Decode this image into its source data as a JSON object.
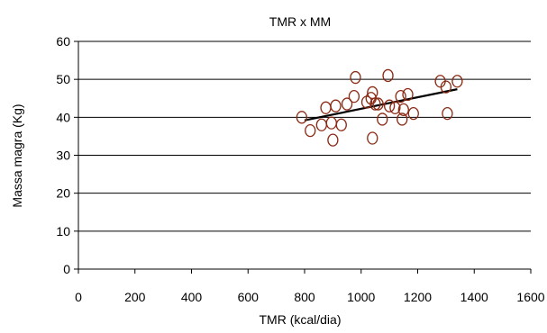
{
  "chart_data": {
    "type": "scatter",
    "title": "TMR x MM",
    "xlabel": "TMR (kcal/dia)",
    "ylabel": "Massa magra (Kg)",
    "xlim": [
      0,
      1600
    ],
    "ylim": [
      0,
      60
    ],
    "xticks": [
      "0",
      "200",
      "400",
      "600",
      "800",
      "1000",
      "1200",
      "1400",
      "1600"
    ],
    "yticks": [
      "0",
      "10",
      "20",
      "30",
      "40",
      "50",
      "60"
    ],
    "grid": "horizontal",
    "legend": "none",
    "colors": {
      "marker": "#8b2a14",
      "trendline": "#000000",
      "grid": "#000000"
    },
    "series": [
      {
        "points": [
          [
            790,
            40.0
          ],
          [
            820,
            36.5
          ],
          [
            860,
            38.0
          ],
          [
            875,
            42.5
          ],
          [
            895,
            38.5
          ],
          [
            900,
            34.0
          ],
          [
            910,
            43.0
          ],
          [
            930,
            38.0
          ],
          [
            950,
            43.5
          ],
          [
            975,
            45.5
          ],
          [
            980,
            50.5
          ],
          [
            1020,
            44.0
          ],
          [
            1035,
            45.0
          ],
          [
            1040,
            46.5
          ],
          [
            1040,
            34.5
          ],
          [
            1050,
            43.5
          ],
          [
            1060,
            43.5
          ],
          [
            1075,
            39.5
          ],
          [
            1095,
            51.0
          ],
          [
            1100,
            43.0
          ],
          [
            1120,
            42.5
          ],
          [
            1140,
            45.5
          ],
          [
            1145,
            39.5
          ],
          [
            1150,
            42.0
          ],
          [
            1165,
            46.0
          ],
          [
            1185,
            41.0
          ],
          [
            1280,
            49.5
          ],
          [
            1300,
            48.0
          ],
          [
            1305,
            41.0
          ],
          [
            1340,
            49.5
          ]
        ]
      }
    ],
    "trendline": {
      "x": [
        800,
        1340
      ],
      "y": [
        39.2,
        47.4
      ]
    }
  }
}
